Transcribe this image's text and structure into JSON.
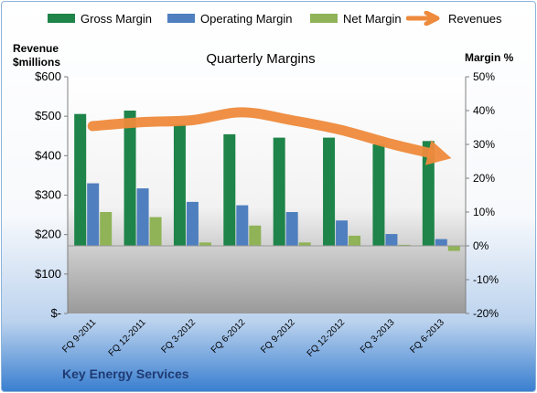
{
  "chart_data": {
    "type": "bar",
    "title": "Quarterly Margins",
    "categories": [
      "FQ 9-2011",
      "FQ 12-2011",
      "FQ 3-2012",
      "FQ 6-2012",
      "FQ 9-2012",
      "FQ 12-2012",
      "FQ 3-2013",
      "FQ 6-2013"
    ],
    "series": [
      {
        "name": "Gross Margin",
        "type": "bar",
        "axis": "right",
        "color": "#1e8449",
        "values": [
          39,
          40,
          36,
          33,
          32,
          32,
          30,
          31
        ]
      },
      {
        "name": "Operating Margin",
        "type": "bar",
        "axis": "right",
        "color": "#4f7fbf",
        "values": [
          18.5,
          17,
          13,
          12,
          10,
          7.5,
          3.5,
          2
        ]
      },
      {
        "name": "Net Margin",
        "type": "bar",
        "axis": "right",
        "color": "#8fb356",
        "values": [
          10,
          8.5,
          1,
          6,
          1,
          3,
          0.3,
          -1.5
        ]
      },
      {
        "name": "Revenues",
        "type": "line",
        "axis": "left",
        "color": "#ee8a3c",
        "values": [
          475,
          485,
          490,
          510,
          490,
          465,
          430,
          400
        ]
      }
    ],
    "yaxis_left": {
      "title_lines": [
        "Revenue",
        "$millions"
      ],
      "ticks": [
        "$600",
        "$500",
        "$400",
        "$300",
        "$200",
        "$100",
        "$-"
      ],
      "range": [
        0,
        600
      ]
    },
    "yaxis_right": {
      "title": "Margin %",
      "ticks": [
        "50%",
        "40%",
        "30%",
        "20%",
        "10%",
        "0%",
        "-10%",
        "-20%"
      ],
      "range": [
        -20,
        50
      ]
    },
    "legend_position": "top",
    "grid": false,
    "footer": "Key Energy Services"
  }
}
